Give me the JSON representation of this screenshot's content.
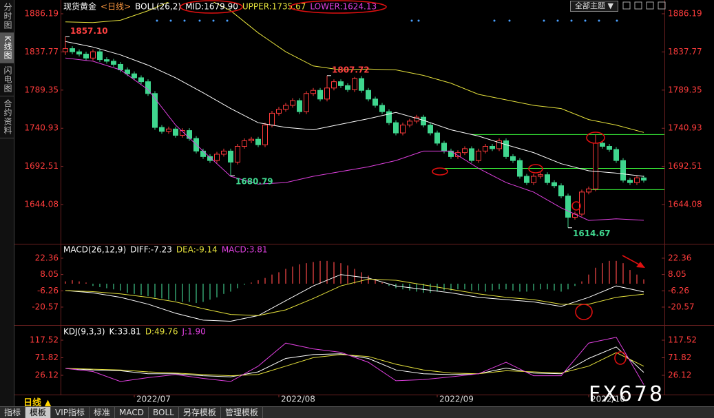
{
  "sidebar": [
    "分时图",
    "K线图",
    "闪电图",
    "合约资料"
  ],
  "toolbar": {
    "theme": "全部主题 ▼"
  },
  "period_button": "日线 ▲",
  "tabs": [
    "指标",
    "模板",
    "VIP指标",
    "标准",
    "MACD",
    "BOLL",
    "另存模板",
    "管理模板"
  ],
  "active_tab": 1,
  "watermark": "FX678",
  "chart_data": [
    {
      "type": "candlestick",
      "title": "现货黄金",
      "period": "<日线>",
      "indicator": "BOLL(26,2)",
      "ylim": [
        1596.1,
        1899.3
      ],
      "yticks": [
        1886.19,
        1837.77,
        1789.35,
        1740.93,
        1692.51,
        1644.08
      ],
      "up_color": "#ff3b3b",
      "down_color": "#3fd68e",
      "ohlc": [
        [
          1838,
          1857.1,
          1834,
          1842
        ],
        [
          1842,
          1845,
          1835,
          1838
        ],
        [
          1838,
          1841,
          1832,
          1835
        ],
        [
          1835,
          1838,
          1827,
          1830
        ],
        [
          1830,
          1841,
          1827,
          1838
        ],
        [
          1838,
          1841,
          1825,
          1828
        ],
        [
          1828,
          1831,
          1823,
          1826
        ],
        [
          1826,
          1829,
          1819,
          1822
        ],
        [
          1822,
          1825,
          1812,
          1815
        ],
        [
          1815,
          1818,
          1807,
          1810
        ],
        [
          1810,
          1813,
          1802,
          1805
        ],
        [
          1805,
          1808,
          1797,
          1800
        ],
        [
          1800,
          1803,
          1782,
          1785
        ],
        [
          1785,
          1788,
          1739,
          1742
        ],
        [
          1742,
          1745,
          1734,
          1737
        ],
        [
          1737,
          1743,
          1734,
          1740
        ],
        [
          1740,
          1743,
          1729,
          1732
        ],
        [
          1732,
          1741,
          1729,
          1738
        ],
        [
          1738,
          1741,
          1725,
          1728
        ],
        [
          1728,
          1731,
          1709,
          1712
        ],
        [
          1712,
          1715,
          1702,
          1705
        ],
        [
          1705,
          1708,
          1697,
          1700
        ],
        [
          1700,
          1711,
          1697,
          1708
        ],
        [
          1708,
          1715,
          1705,
          1712
        ],
        [
          1712,
          1715,
          1680.79,
          1698
        ],
        [
          1698,
          1721,
          1695,
          1718
        ],
        [
          1718,
          1728,
          1715,
          1725
        ],
        [
          1725,
          1730,
          1722,
          1727
        ],
        [
          1727,
          1730,
          1717,
          1720
        ],
        [
          1720,
          1748,
          1717,
          1745
        ],
        [
          1745,
          1763,
          1742,
          1760
        ],
        [
          1760,
          1768,
          1757,
          1765
        ],
        [
          1765,
          1773,
          1762,
          1770
        ],
        [
          1770,
          1779,
          1767,
          1776
        ],
        [
          1776,
          1779,
          1759,
          1762
        ],
        [
          1762,
          1788,
          1759,
          1785
        ],
        [
          1785,
          1792,
          1782,
          1789
        ],
        [
          1789,
          1792,
          1775,
          1778
        ],
        [
          1778,
          1807.72,
          1775,
          1792
        ],
        [
          1792,
          1803,
          1789,
          1800
        ],
        [
          1800,
          1803,
          1792,
          1795
        ],
        [
          1795,
          1798,
          1787,
          1790
        ],
        [
          1790,
          1806,
          1787,
          1804
        ],
        [
          1804,
          1807,
          1786,
          1789
        ],
        [
          1789,
          1792,
          1775,
          1778
        ],
        [
          1778,
          1781,
          1767,
          1770
        ],
        [
          1770,
          1773,
          1759,
          1762
        ],
        [
          1762,
          1765,
          1745,
          1748
        ],
        [
          1748,
          1751,
          1732,
          1735
        ],
        [
          1735,
          1748,
          1732,
          1745
        ],
        [
          1745,
          1753,
          1742,
          1750
        ],
        [
          1750,
          1758,
          1747,
          1755
        ],
        [
          1755,
          1758,
          1742,
          1745
        ],
        [
          1745,
          1748,
          1732,
          1735
        ],
        [
          1735,
          1738,
          1719,
          1722
        ],
        [
          1722,
          1725,
          1709,
          1712
        ],
        [
          1712,
          1715,
          1702,
          1705
        ],
        [
          1705,
          1713,
          1702,
          1710
        ],
        [
          1710,
          1718,
          1707,
          1715
        ],
        [
          1715,
          1718,
          1697,
          1700
        ],
        [
          1700,
          1715,
          1697,
          1712
        ],
        [
          1712,
          1721,
          1709,
          1718
        ],
        [
          1718,
          1721,
          1712,
          1715
        ],
        [
          1715,
          1728,
          1712,
          1725
        ],
        [
          1725,
          1728,
          1702,
          1705
        ],
        [
          1705,
          1708,
          1697,
          1700
        ],
        [
          1700,
          1703,
          1677,
          1680
        ],
        [
          1680,
          1683,
          1669,
          1672
        ],
        [
          1672,
          1683,
          1669,
          1680
        ],
        [
          1680,
          1685,
          1677,
          1682
        ],
        [
          1682,
          1685,
          1669,
          1672
        ],
        [
          1672,
          1675,
          1665,
          1668
        ],
        [
          1668,
          1671,
          1652,
          1655
        ],
        [
          1655,
          1658,
          1614.67,
          1628
        ],
        [
          1628,
          1635,
          1625,
          1632
        ],
        [
          1632,
          1663,
          1629,
          1660
        ],
        [
          1660,
          1667,
          1657,
          1664
        ],
        [
          1664,
          1733,
          1661,
          1722
        ],
        [
          1722,
          1725,
          1715,
          1718
        ],
        [
          1718,
          1721,
          1711,
          1714
        ],
        [
          1714,
          1717,
          1697,
          1700
        ],
        [
          1700,
          1703,
          1672,
          1675
        ],
        [
          1675,
          1678,
          1669,
          1672
        ],
        [
          1672,
          1681,
          1669,
          1678
        ],
        [
          1678,
          1681,
          1672,
          1675
        ]
      ],
      "x": [
        0,
        4,
        8,
        12,
        16,
        20,
        24,
        28,
        32,
        36,
        40,
        44,
        48,
        52,
        56,
        60,
        64,
        68,
        72,
        76,
        80,
        84
      ],
      "series": [
        {
          "name": "MID:1679.90",
          "color": "#ffffff",
          "values": [
            1851,
            1844,
            1834,
            1821,
            1805,
            1786,
            1766,
            1748,
            1742,
            1739,
            1746,
            1753,
            1761,
            1751,
            1739,
            1731,
            1720,
            1710,
            1696,
            1687,
            1684,
            1679.9
          ]
        },
        {
          "name": "UPPER:1735.67",
          "color": "#e6e23c",
          "values": [
            1876,
            1875,
            1878,
            1890,
            1905,
            1908,
            1890,
            1862,
            1838,
            1820,
            1815,
            1816,
            1815,
            1808,
            1798,
            1784,
            1777,
            1770,
            1766,
            1752,
            1745,
            1735.67
          ]
        },
        {
          "name": "LOWER:1624.13",
          "color": "#e040e0",
          "values": [
            1830,
            1826,
            1815,
            1790,
            1745,
            1712,
            1680,
            1670,
            1672,
            1680,
            1686,
            1692,
            1700,
            1712,
            1712,
            1690,
            1672,
            1660,
            1640,
            1624,
            1626,
            1624.13
          ]
        }
      ],
      "levels": [
        {
          "value": 1733,
          "from": 59
        },
        {
          "value": 1690,
          "from": 55
        },
        {
          "value": 1663,
          "from": 76
        }
      ],
      "level_color": "#3cff3c",
      "annotations": [
        {
          "text": "1857.10",
          "index": 0,
          "value": 1857.1,
          "position": "above",
          "color": "#ff4040"
        },
        {
          "text": "1680.79",
          "index": 24,
          "value": 1680.79,
          "position": "below",
          "color": "#3fd68e"
        },
        {
          "text": "1807.72",
          "index": 38,
          "value": 1807.72,
          "position": "above",
          "color": "#ff4040"
        },
        {
          "text": "1614.67",
          "index": 73,
          "value": 1614.67,
          "position": "below",
          "color": "#3fd68e"
        }
      ]
    },
    {
      "type": "macd",
      "indicator": "MACD(26,12,9)",
      "ylim": [
        -35.1,
        32.6
      ],
      "yticks": [
        22.36,
        8.05,
        -6.26,
        -20.57
      ],
      "x": [
        0,
        4,
        8,
        12,
        16,
        20,
        24,
        28,
        32,
        36,
        40,
        44,
        48,
        52,
        56,
        60,
        64,
        68,
        72,
        76,
        80,
        84
      ],
      "series": [
        {
          "name": "DIFF:-7.23",
          "color": "#ffffff",
          "values": [
            -6,
            -8,
            -12,
            -18,
            -26,
            -32,
            -33,
            -28,
            -15,
            -2,
            8,
            5,
            -2,
            -5,
            -8,
            -12,
            -14,
            -16,
            -20,
            -12,
            -2,
            -7.23
          ]
        },
        {
          "name": "DEA:-9.14",
          "color": "#e6e23c",
          "values": [
            -6,
            -7,
            -9,
            -12,
            -16,
            -22,
            -27,
            -28,
            -23,
            -13,
            -2,
            4,
            3,
            -1,
            -5,
            -9,
            -12,
            -14,
            -18,
            -18,
            -12,
            -9.14
          ]
        }
      ],
      "histogram": {
        "name": "MACD:3.81",
        "color": "#e040e0",
        "up_color": "#ff4a4a",
        "down_color": "#3fc88a",
        "values": [
          2,
          3,
          2,
          1,
          -2,
          -3,
          -4,
          -5,
          -6,
          -8,
          -9,
          -10,
          -11,
          -12,
          -13,
          -14,
          -15,
          -16,
          -16,
          -17,
          -16,
          -14,
          -12,
          -9,
          -7,
          -4,
          -1,
          1,
          3,
          5,
          8,
          10,
          13,
          15,
          17,
          18,
          19,
          20,
          20,
          19,
          18,
          16,
          13,
          10,
          7,
          4,
          1,
          -2,
          -4,
          -5,
          -6,
          -7,
          -8,
          -8,
          -7,
          -6,
          -6,
          -5,
          -5,
          -6,
          -6,
          -7,
          -6,
          -5,
          -5,
          -6,
          -7,
          -7,
          -6,
          -5,
          -5,
          -6,
          -7,
          -5,
          -2,
          2,
          8,
          14,
          18,
          20,
          20,
          18,
          12,
          8,
          3.81
        ]
      }
    },
    {
      "type": "line",
      "indicator": "KDJ(9,3,3)",
      "ylim": [
        -22.3,
        146.2
      ],
      "yticks": [
        117.52,
        71.82,
        26.12
      ],
      "x": [
        0,
        4,
        8,
        12,
        16,
        20,
        24,
        28,
        32,
        36,
        40,
        44,
        48,
        52,
        56,
        60,
        64,
        68,
        72,
        76,
        80,
        84
      ],
      "series": [
        {
          "name": "K:33.81",
          "color": "#ffffff",
          "values": [
            44,
            40,
            38,
            30,
            30,
            25,
            22,
            35,
            70,
            80,
            82,
            70,
            40,
            30,
            28,
            30,
            45,
            32,
            30,
            70,
            100,
            33.81
          ]
        },
        {
          "name": "D:49.76",
          "color": "#e6e23c",
          "values": [
            44,
            42,
            40,
            35,
            32,
            28,
            25,
            28,
            50,
            72,
            80,
            75,
            55,
            40,
            32,
            30,
            38,
            35,
            32,
            50,
            85,
            49.76
          ]
        },
        {
          "name": "J:1.90",
          "color": "#e040e0",
          "values": [
            44,
            36,
            10,
            20,
            28,
            18,
            10,
            50,
            110,
            95,
            86,
            60,
            12,
            15,
            22,
            30,
            60,
            25,
            25,
            110,
            125,
            1.9
          ]
        }
      ],
      "xticks": [
        {
          "value": 10,
          "label": "2022/07"
        },
        {
          "value": 31,
          "label": "2022/08"
        },
        {
          "value": 54,
          "label": "2022/09"
        },
        {
          "value": 76,
          "label": "2022/10"
        }
      ]
    }
  ]
}
